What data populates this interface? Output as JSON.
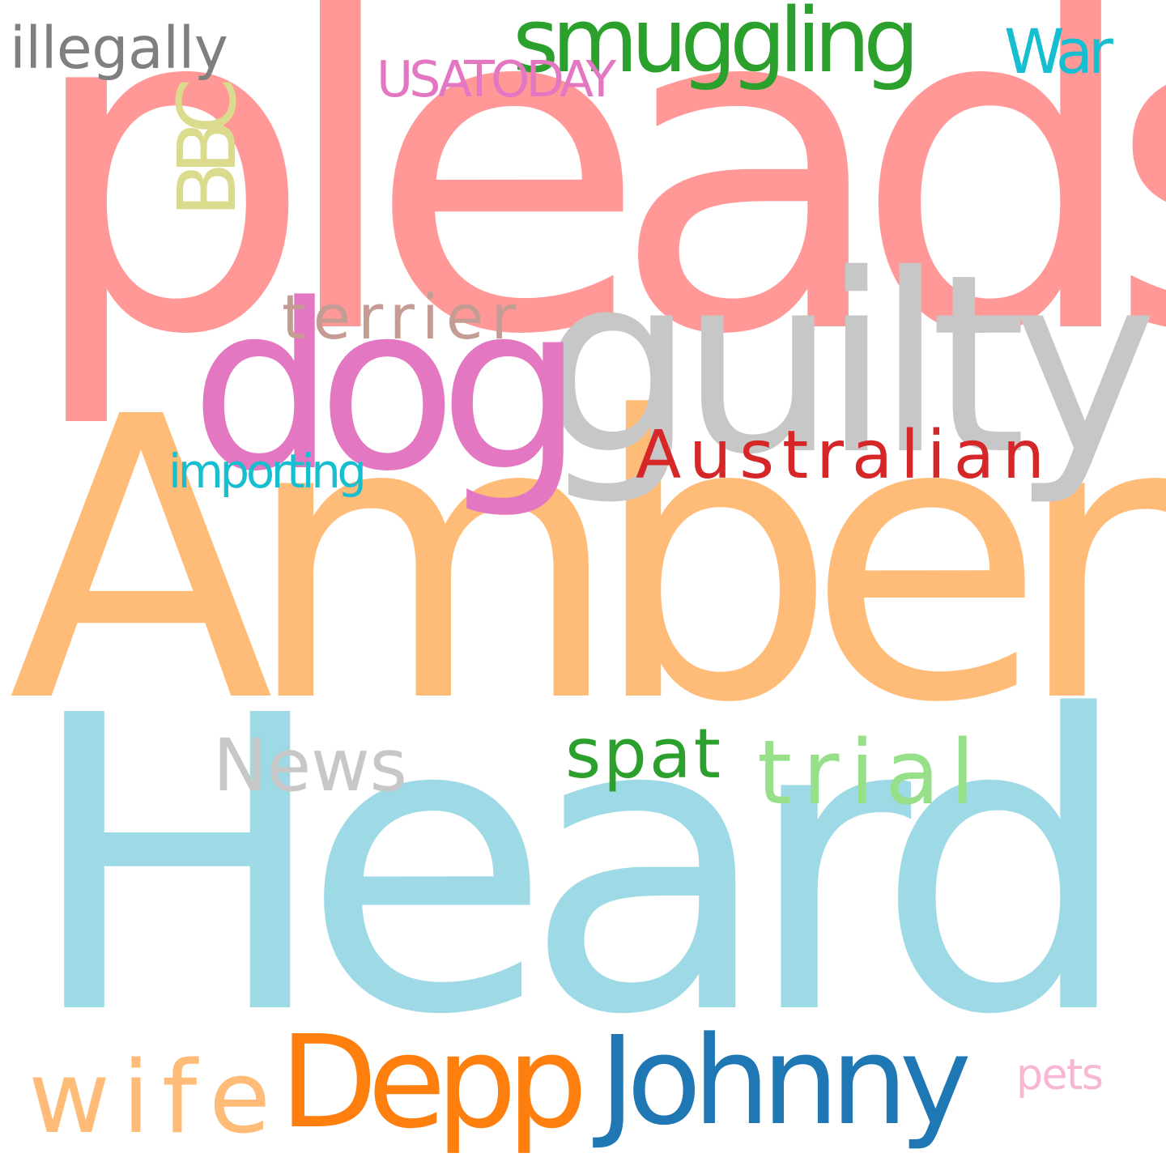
{
  "wordcloud": {
    "words": [
      {
        "text": "Heard",
        "color": "#9edae5"
      },
      {
        "text": "Amber",
        "color": "#ffbb78"
      },
      {
        "text": "pleads",
        "color": "#ff9896"
      },
      {
        "text": "guilty",
        "color": "#c7c7c7"
      },
      {
        "text": "dog",
        "color": "#e377c2"
      },
      {
        "text": "Johnny",
        "color": "#1f77b4"
      },
      {
        "text": "Depp",
        "color": "#ff7f0e"
      },
      {
        "text": "wife",
        "color": "#ffbb78"
      },
      {
        "text": "Australian",
        "color": "#d62728"
      },
      {
        "text": "News",
        "color": "#c7c7c7"
      },
      {
        "text": "trial",
        "color": "#98df8a"
      },
      {
        "text": "spat",
        "color": "#2ca02c"
      },
      {
        "text": "smuggling",
        "color": "#2ca02c"
      },
      {
        "text": "terrier",
        "color": "#c49c94"
      },
      {
        "text": "BBC",
        "color": "#dbdb8d"
      },
      {
        "text": "War",
        "color": "#17becf"
      },
      {
        "text": "USATODAY",
        "color": "#e377c2"
      },
      {
        "text": "illegally",
        "color": "#7f7f7f"
      },
      {
        "text": "importing",
        "color": "#17becf"
      },
      {
        "text": "pets",
        "color": "#f7b6d2"
      }
    ]
  }
}
